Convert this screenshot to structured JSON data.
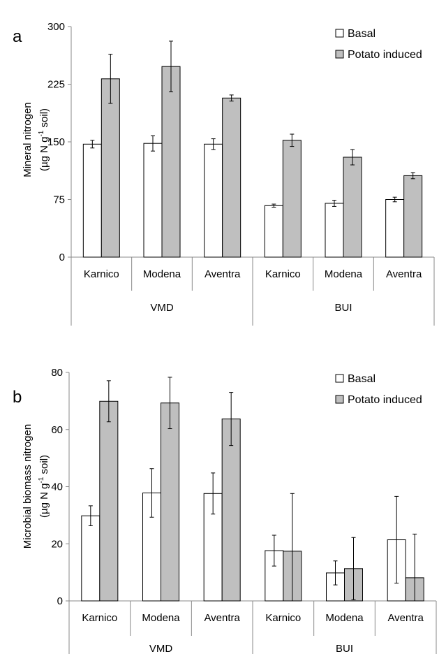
{
  "chart_data": [
    {
      "type": "bar",
      "panel_label": "a",
      "ylabel_line1": "Mineral nitrogen",
      "ylabel_line2": "(µg N g",
      "ylabel_sup": "-1",
      "ylabel_line2_end": " soil)",
      "ylim": [
        0,
        300
      ],
      "yticks": [
        "0",
        "75",
        "150",
        "225",
        "300"
      ],
      "ytick_values": [
        0,
        75,
        150,
        225,
        300
      ],
      "categories": [
        "Karnico",
        "Modena",
        "Aventra",
        "Karnico",
        "Modena",
        "Aventra"
      ],
      "groups": [
        "VMD",
        "BUI"
      ],
      "legend_position": "top-right",
      "series": [
        {
          "name": "Basal",
          "color": "#ffffff",
          "values": [
            147,
            148,
            147,
            67,
            70,
            75
          ],
          "errors": [
            5,
            10,
            7,
            2,
            4,
            3
          ]
        },
        {
          "name": "Potato induced",
          "color": "#bfbfbf",
          "values": [
            232,
            248,
            207,
            152,
            130,
            106
          ],
          "errors": [
            32,
            33,
            4,
            8,
            10,
            4
          ]
        }
      ]
    },
    {
      "type": "bar",
      "panel_label": "b",
      "ylabel_line1": "Microbial biomass nitrogen",
      "ylabel_line2": "(µg N g",
      "ylabel_sup": "-1",
      "ylabel_line2_end": " soil)",
      "ylim": [
        0,
        80
      ],
      "yticks": [
        "0",
        "20",
        "40",
        "60",
        "80"
      ],
      "ytick_values": [
        0,
        20,
        40,
        60,
        80
      ],
      "categories": [
        "Karnico",
        "Modena",
        "Aventra",
        "Karnico",
        "Modena",
        "Aventra"
      ],
      "groups": [
        "VMD",
        "BUI"
      ],
      "legend_position": "top-right",
      "series": [
        {
          "name": "Basal",
          "color": "#ffffff",
          "values": [
            29.8,
            37.8,
            37.6,
            17.6,
            9.8,
            21.4
          ],
          "errors": [
            3.5,
            8.5,
            7.2,
            5.4,
            4.2,
            15.2
          ]
        },
        {
          "name": "Potato induced",
          "color": "#bfbfbf",
          "values": [
            69.9,
            69.3,
            63.7,
            17.4,
            11.3,
            8.1
          ],
          "errors": [
            7.2,
            9.0,
            9.3,
            20.2,
            10.9,
            15.3
          ]
        }
      ]
    }
  ]
}
